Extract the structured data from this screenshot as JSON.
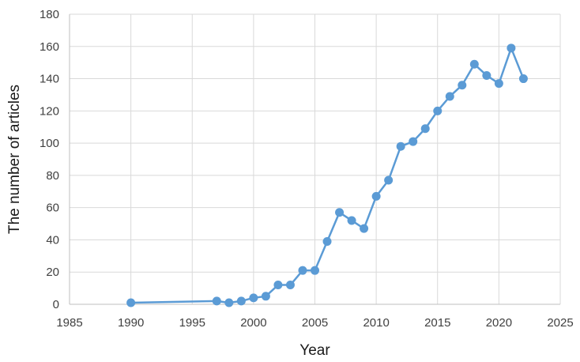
{
  "chart_data": {
    "type": "line",
    "title": "",
    "xlabel": "Year",
    "ylabel": "The number of articles",
    "xlim": [
      1985,
      2025
    ],
    "ylim": [
      0,
      180
    ],
    "x_ticks": [
      1985,
      1990,
      1995,
      2000,
      2005,
      2010,
      2015,
      2020,
      2025
    ],
    "y_ticks": [
      0,
      20,
      40,
      60,
      80,
      100,
      120,
      140,
      160,
      180
    ],
    "grid": true,
    "legend": "none",
    "series": [
      {
        "color": "#5b9bd5",
        "points": [
          {
            "x": 1990,
            "y": 1
          },
          {
            "x": 1997,
            "y": 2
          },
          {
            "x": 1998,
            "y": 1
          },
          {
            "x": 1999,
            "y": 2
          },
          {
            "x": 2000,
            "y": 4
          },
          {
            "x": 2001,
            "y": 5
          },
          {
            "x": 2002,
            "y": 12
          },
          {
            "x": 2003,
            "y": 12
          },
          {
            "x": 2004,
            "y": 21
          },
          {
            "x": 2005,
            "y": 21
          },
          {
            "x": 2006,
            "y": 39
          },
          {
            "x": 2007,
            "y": 57
          },
          {
            "x": 2008,
            "y": 52
          },
          {
            "x": 2009,
            "y": 47
          },
          {
            "x": 2010,
            "y": 67
          },
          {
            "x": 2011,
            "y": 77
          },
          {
            "x": 2012,
            "y": 98
          },
          {
            "x": 2013,
            "y": 101
          },
          {
            "x": 2014,
            "y": 109
          },
          {
            "x": 2015,
            "y": 120
          },
          {
            "x": 2016,
            "y": 129
          },
          {
            "x": 2017,
            "y": 136
          },
          {
            "x": 2018,
            "y": 149
          },
          {
            "x": 2019,
            "y": 142
          },
          {
            "x": 2020,
            "y": 137
          },
          {
            "x": 2021,
            "y": 159
          },
          {
            "x": 2022,
            "y": 140
          }
        ]
      }
    ]
  }
}
